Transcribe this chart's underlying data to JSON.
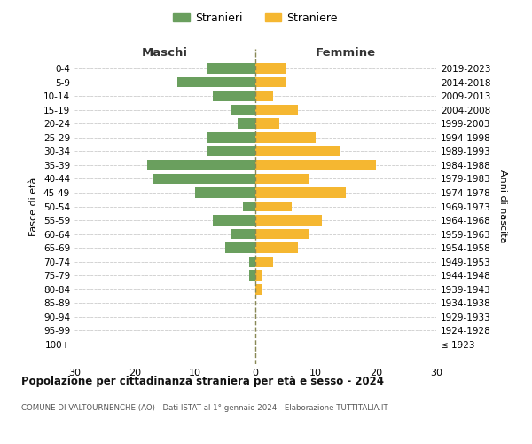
{
  "age_groups": [
    "100+",
    "95-99",
    "90-94",
    "85-89",
    "80-84",
    "75-79",
    "70-74",
    "65-69",
    "60-64",
    "55-59",
    "50-54",
    "45-49",
    "40-44",
    "35-39",
    "30-34",
    "25-29",
    "20-24",
    "15-19",
    "10-14",
    "5-9",
    "0-4"
  ],
  "birth_years": [
    "≤ 1923",
    "1924-1928",
    "1929-1933",
    "1934-1938",
    "1939-1943",
    "1944-1948",
    "1949-1953",
    "1954-1958",
    "1959-1963",
    "1964-1968",
    "1969-1973",
    "1974-1978",
    "1979-1983",
    "1984-1988",
    "1989-1993",
    "1994-1998",
    "1999-2003",
    "2004-2008",
    "2009-2013",
    "2014-2018",
    "2019-2023"
  ],
  "males": [
    0,
    0,
    0,
    0,
    0,
    1,
    1,
    5,
    4,
    7,
    2,
    10,
    17,
    18,
    8,
    8,
    3,
    4,
    7,
    13,
    8
  ],
  "females": [
    0,
    0,
    0,
    0,
    1,
    1,
    3,
    7,
    9,
    11,
    6,
    15,
    9,
    20,
    14,
    10,
    4,
    7,
    3,
    5,
    5
  ],
  "male_color": "#6a9f5e",
  "female_color": "#f5b731",
  "background_color": "#ffffff",
  "grid_color": "#cccccc",
  "dashed_line_color": "#888855",
  "title": "Popolazione per cittadinanza straniera per età e sesso - 2024",
  "subtitle": "COMUNE DI VALTOURNENCHE (AO) - Dati ISTAT al 1° gennaio 2024 - Elaborazione TUTTITALIA.IT",
  "header_left": "Maschi",
  "header_right": "Femmine",
  "ylabel_left": "Fasce di età",
  "ylabel_right": "Anni di nascita",
  "legend_males": "Stranieri",
  "legend_females": "Straniere",
  "xlim": 30,
  "bar_height": 0.75
}
